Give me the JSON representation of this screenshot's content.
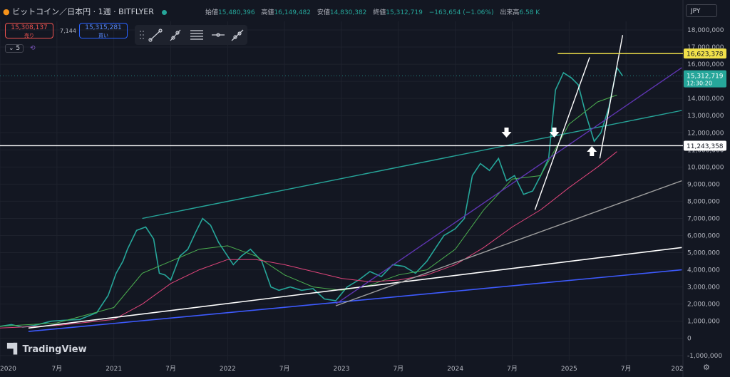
{
  "header": {
    "symbol": "ビットコイン／日本円 · 1週 · BITFLYER",
    "open_label": "始値",
    "open": "15,480,396",
    "high_label": "高値",
    "high": "16,149,482",
    "low_label": "安値",
    "low": "14,830,382",
    "close_label": "終値",
    "close": "15,312,719",
    "change": "−163,654 (−1.06%)",
    "volume_label": "出来高",
    "volume": "6.58 K",
    "currency": "JPY"
  },
  "trade": {
    "sell_price": "15,308,137",
    "sell_label": "売り",
    "spread": "7,144",
    "buy_price": "15,315,281",
    "buy_label": "買い"
  },
  "indicator_count": "5",
  "brand": "TradingView",
  "colors": {
    "up": "#26a69a",
    "down": "#ef5350",
    "bg": "#131722",
    "grid": "#1e222d"
  },
  "chart_data": {
    "type": "line",
    "series": [
      {
        "values": [
          [
            2020.0,
            700000
          ],
          [
            2020.1,
            800000
          ],
          [
            2020.2,
            650000
          ],
          [
            2020.3,
            750000
          ],
          [
            2020.45,
            1000000
          ],
          [
            2020.55,
            1050000
          ],
          [
            2020.7,
            1100000
          ],
          [
            2020.85,
            1500000
          ],
          [
            2020.95,
            2500000
          ],
          [
            2021.02,
            3800000
          ],
          [
            2021.08,
            4500000
          ],
          [
            2021.12,
            5200000
          ],
          [
            2021.2,
            6300000
          ],
          [
            2021.28,
            6500000
          ],
          [
            2021.35,
            5800000
          ],
          [
            2021.4,
            3800000
          ],
          [
            2021.45,
            3700000
          ],
          [
            2021.5,
            3400000
          ],
          [
            2021.58,
            4800000
          ],
          [
            2021.65,
            5200000
          ],
          [
            2021.72,
            6200000
          ],
          [
            2021.78,
            7000000
          ],
          [
            2021.85,
            6600000
          ],
          [
            2021.92,
            5600000
          ],
          [
            2022.0,
            4800000
          ],
          [
            2022.05,
            4300000
          ],
          [
            2022.12,
            4800000
          ],
          [
            2022.2,
            5200000
          ],
          [
            2022.3,
            4500000
          ],
          [
            2022.38,
            3000000
          ],
          [
            2022.45,
            2800000
          ],
          [
            2022.55,
            3000000
          ],
          [
            2022.65,
            2800000
          ],
          [
            2022.75,
            2900000
          ],
          [
            2022.85,
            2300000
          ],
          [
            2022.95,
            2200000
          ],
          [
            2023.05,
            3000000
          ],
          [
            2023.15,
            3400000
          ],
          [
            2023.25,
            3900000
          ],
          [
            2023.35,
            3600000
          ],
          [
            2023.45,
            4300000
          ],
          [
            2023.55,
            4200000
          ],
          [
            2023.65,
            3800000
          ],
          [
            2023.75,
            4500000
          ],
          [
            2023.82,
            5200000
          ],
          [
            2023.9,
            6000000
          ],
          [
            2024.0,
            6400000
          ],
          [
            2024.08,
            7000000
          ],
          [
            2024.15,
            9500000
          ],
          [
            2024.22,
            10200000
          ],
          [
            2024.3,
            9800000
          ],
          [
            2024.38,
            10500000
          ],
          [
            2024.45,
            9200000
          ],
          [
            2024.52,
            9500000
          ],
          [
            2024.6,
            8400000
          ],
          [
            2024.68,
            8600000
          ],
          [
            2024.75,
            9500000
          ],
          [
            2024.82,
            10500000
          ],
          [
            2024.88,
            14500000
          ],
          [
            2024.95,
            15500000
          ],
          [
            2025.02,
            15200000
          ],
          [
            2025.08,
            14800000
          ],
          [
            2025.15,
            13000000
          ],
          [
            2025.22,
            11500000
          ],
          [
            2025.28,
            12000000
          ],
          [
            2025.35,
            13500000
          ],
          [
            2025.42,
            15800000
          ],
          [
            2025.47,
            15312719
          ]
        ]
      },
      {
        "values": [
          [
            2020.0,
            700000
          ],
          [
            2020.5,
            900000
          ],
          [
            2021.0,
            1800000
          ],
          [
            2021.25,
            3800000
          ],
          [
            2021.5,
            4500000
          ],
          [
            2021.75,
            5200000
          ],
          [
            2022.0,
            5400000
          ],
          [
            2022.25,
            4800000
          ],
          [
            2022.5,
            3700000
          ],
          [
            2022.75,
            3000000
          ],
          [
            2023.0,
            2800000
          ],
          [
            2023.25,
            3100000
          ],
          [
            2023.5,
            3700000
          ],
          [
            2023.75,
            4000000
          ],
          [
            2024.0,
            5200000
          ],
          [
            2024.25,
            7500000
          ],
          [
            2024.5,
            9300000
          ],
          [
            2024.75,
            9500000
          ],
          [
            2025.0,
            12500000
          ],
          [
            2025.25,
            13800000
          ],
          [
            2025.42,
            14200000
          ]
        ]
      },
      {
        "values": [
          [
            2020.0,
            600000
          ],
          [
            2020.5,
            750000
          ],
          [
            2021.0,
            1100000
          ],
          [
            2021.25,
            2000000
          ],
          [
            2021.5,
            3200000
          ],
          [
            2021.75,
            4000000
          ],
          [
            2022.0,
            4600000
          ],
          [
            2022.25,
            4600000
          ],
          [
            2022.5,
            4300000
          ],
          [
            2022.75,
            3900000
          ],
          [
            2023.0,
            3500000
          ],
          [
            2023.25,
            3300000
          ],
          [
            2023.5,
            3400000
          ],
          [
            2023.75,
            3700000
          ],
          [
            2024.0,
            4300000
          ],
          [
            2024.25,
            5300000
          ],
          [
            2024.5,
            6500000
          ],
          [
            2024.75,
            7500000
          ],
          [
            2025.0,
            8800000
          ],
          [
            2025.25,
            10000000
          ],
          [
            2025.42,
            10900000
          ]
        ]
      },
      {
        "values": [
          [
            2020.25,
            600000
          ],
          [
            2025.99,
            5300000
          ]
        ]
      },
      {
        "values": [
          [
            2020.25,
            400000
          ],
          [
            2025.99,
            4000000
          ]
        ]
      },
      {
        "values": [
          [
            2022.95,
            1900000
          ],
          [
            2025.99,
            9200000
          ]
        ]
      },
      {
        "values": [
          [
            2021.25,
            7000000
          ],
          [
            2025.99,
            13300000
          ]
        ]
      },
      {
        "values": [
          [
            2022.95,
            2000000
          ],
          [
            2025.99,
            15800000
          ]
        ]
      },
      {
        "values": [
          [
            2024.7,
            7500000
          ],
          [
            2025.18,
            16400000
          ]
        ]
      },
      {
        "values": [
          [
            2025.27,
            10500000
          ],
          [
            2025.47,
            17700000
          ]
        ]
      }
    ],
    "hlines": [
      {
        "value": 16623378,
        "label": "16,623,378",
        "color": "#f0e04a"
      },
      {
        "value": 11243358,
        "label": "11,243,358",
        "color": "#ffffff"
      }
    ],
    "last_price": {
      "value": 15312719,
      "label": "15,312,719",
      "countdown": "12:30:20"
    },
    "arrows": [
      {
        "x": 2024.45,
        "direction": "down"
      },
      {
        "x": 2024.87,
        "direction": "down"
      },
      {
        "x": 2025.2,
        "direction": "up"
      }
    ],
    "x_ticks": [
      "2020",
      "7月",
      "2021",
      "7月",
      "2022",
      "7月",
      "2023",
      "7月",
      "2024",
      "7月",
      "2025",
      "7月",
      "202"
    ],
    "x_tick_values": [
      2020.0,
      2020.5,
      2021.0,
      2021.5,
      2022.0,
      2022.5,
      2023.0,
      2023.5,
      2024.0,
      2024.5,
      2025.0,
      2025.5,
      2026.0
    ],
    "y_ticks": [
      "18,000,000",
      "17,000,000",
      "16,000,000",
      "15,000,000",
      "14,000,000",
      "13,000,000",
      "12,000,000",
      "11,000,000",
      "10,000,000",
      "9,000,000",
      "8,000,000",
      "7,000,000",
      "6,000,000",
      "5,000,000",
      "4,000,000",
      "3,000,000",
      "2,000,000",
      "1,000,000",
      "0",
      "-1,000,000"
    ],
    "ylim": [
      -1300000,
      18500000
    ],
    "xlim": [
      2020.0,
      2026.0
    ],
    "grid": true
  }
}
